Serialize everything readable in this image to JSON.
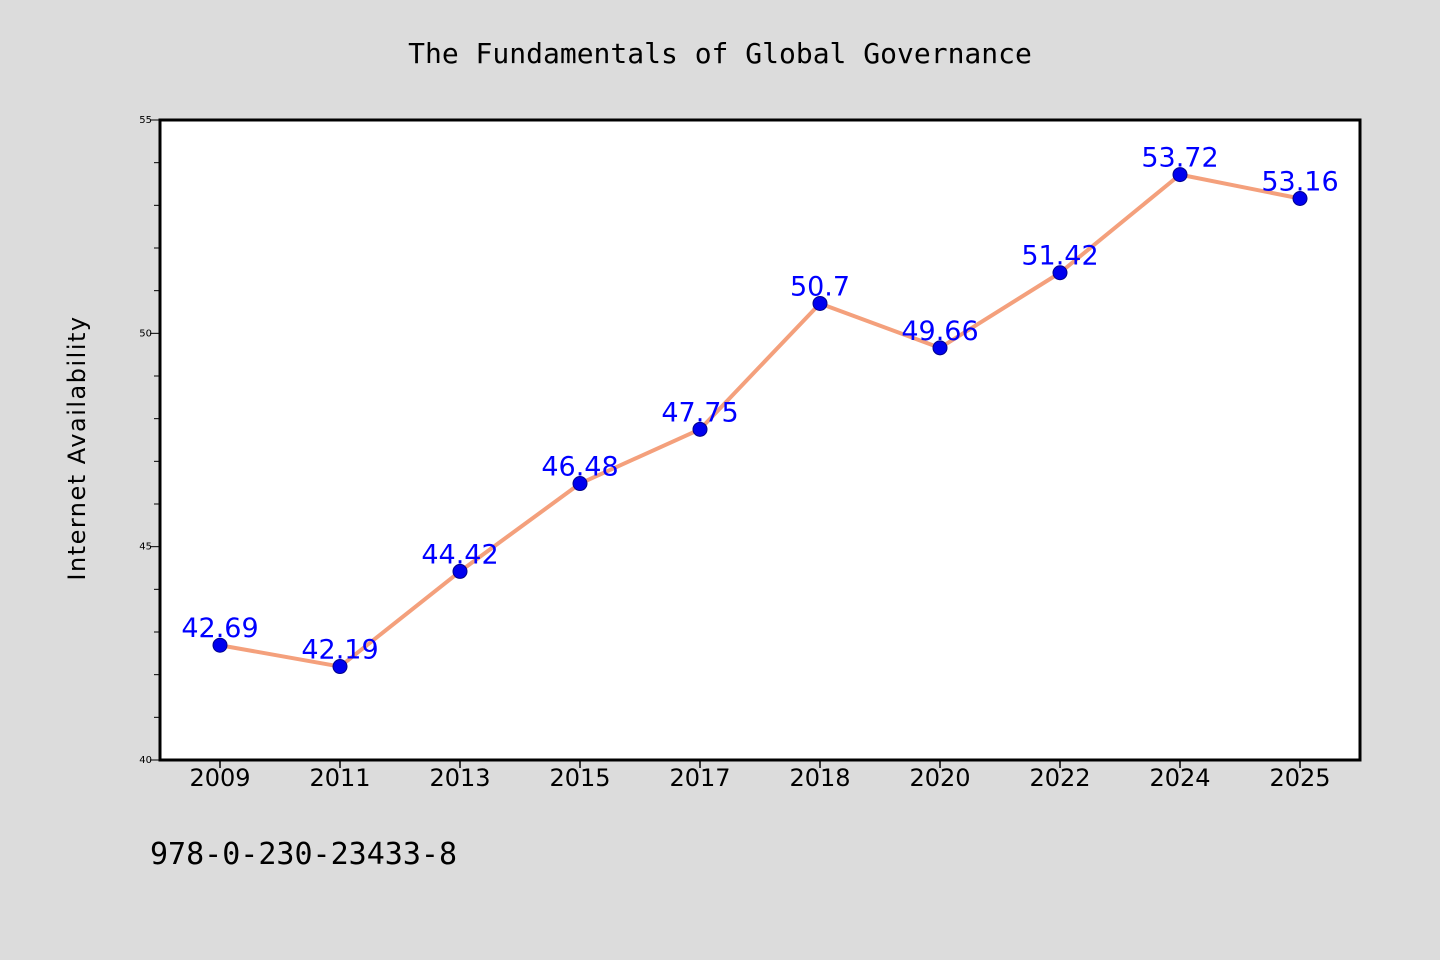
{
  "chart_data": {
    "type": "line",
    "title": "The Fundamentals of Global Governance",
    "xlabel": "",
    "ylabel": "Internet Availability",
    "categories": [
      "2009",
      "2011",
      "2013",
      "2015",
      "2017",
      "2018",
      "2020",
      "2022",
      "2024",
      "2025"
    ],
    "values": [
      42.69,
      42.19,
      44.42,
      46.48,
      47.75,
      50.7,
      49.66,
      51.42,
      53.72,
      53.16
    ],
    "data_labels": [
      "42.69",
      "42.19",
      "44.42",
      "46.48",
      "47.75",
      "50.7",
      "49.66",
      "51.42",
      "53.72",
      "53.16"
    ],
    "ylim": [
      40,
      55
    ],
    "y_ticks": [
      "40",
      "45",
      "50",
      "55"
    ],
    "grid": false,
    "legend": "none",
    "colors": {
      "line": "#f4a07c",
      "marker": "#0000ee",
      "marker_edge": "#00008b",
      "data_label": "#0000ff",
      "background": "#dcdcdc",
      "plot_background": "#ffffff",
      "axis": "#000000",
      "text": "#000000"
    }
  },
  "footer": {
    "isbn": "978-0-230-23433-8"
  }
}
